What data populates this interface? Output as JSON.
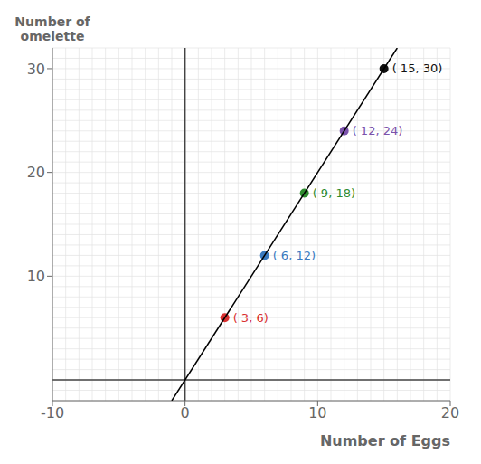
{
  "chart_data": {
    "type": "scatter",
    "x_label": "Number of Eggs",
    "y_label": "Number of\nomelette",
    "xlim": [
      -10,
      20
    ],
    "ylim": [
      -2,
      32
    ],
    "xticks": [
      -10,
      0,
      10,
      20
    ],
    "yticks": [
      10,
      20,
      30
    ],
    "grid": true,
    "series": [
      {
        "type": "scatter",
        "x": [
          3,
          6,
          9,
          12,
          15
        ],
        "values": [
          6,
          12,
          18,
          24,
          30
        ],
        "colors": [
          "#d93030",
          "#3a7abf",
          "#2e8b2e",
          "#7b52ab",
          "#111111"
        ],
        "annotations": [
          "( 3, 6)",
          "( 6, 12)",
          "( 9, 18)",
          "( 12, 24)",
          "( 15, 30)"
        ]
      },
      {
        "type": "line",
        "x": [
          -1,
          16
        ],
        "values": [
          -2,
          32
        ],
        "color": "#000000"
      }
    ]
  }
}
